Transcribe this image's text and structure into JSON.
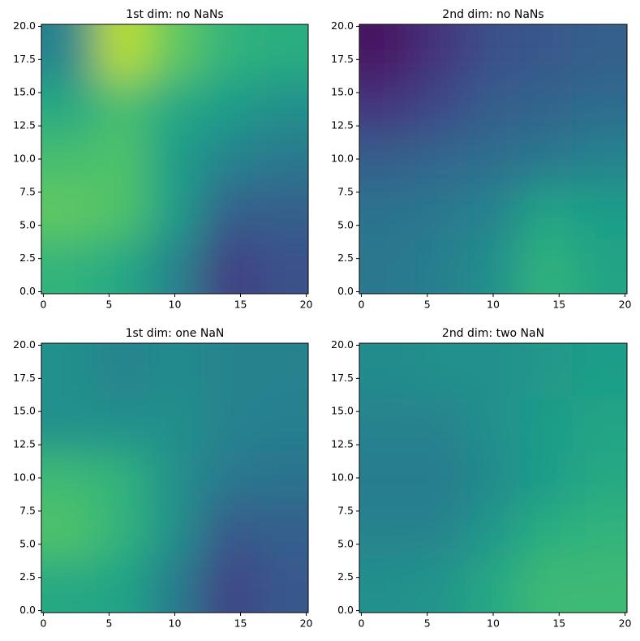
{
  "chart_data": [
    {
      "type": "heatmap",
      "title": "1st dim: no NaNs",
      "colormap": "viridis",
      "clim": [
        0,
        1
      ],
      "x": [
        2,
        6,
        10,
        14,
        18
      ],
      "y": [
        2,
        6,
        10,
        14,
        18
      ],
      "values": [
        [
          0.65,
          0.6,
          0.45,
          0.18,
          0.25
        ],
        [
          0.75,
          0.72,
          0.55,
          0.3,
          0.3
        ],
        [
          0.7,
          0.72,
          0.55,
          0.45,
          0.4
        ],
        [
          0.6,
          0.7,
          0.6,
          0.55,
          0.5
        ],
        [
          0.45,
          0.9,
          0.75,
          0.65,
          0.62
        ]
      ],
      "xlim": [
        -0.15,
        20.15
      ],
      "ylim": [
        -0.15,
        20.15
      ],
      "xticks": [
        0,
        5,
        10,
        15,
        20
      ],
      "yticks": [
        {
          "value": 0,
          "label": "0.0"
        },
        {
          "value": 2.5,
          "label": "2.5"
        },
        {
          "value": 5,
          "label": "5.0"
        },
        {
          "value": 7.5,
          "label": "7.5"
        },
        {
          "value": 10,
          "label": "10.0"
        },
        {
          "value": 12.5,
          "label": "12.5"
        },
        {
          "value": 15,
          "label": "15.0"
        },
        {
          "value": 17.5,
          "label": "17.5"
        },
        {
          "value": 20,
          "label": "20.0"
        }
      ]
    },
    {
      "type": "heatmap",
      "title": "2nd dim: no NaNs",
      "colormap": "viridis",
      "clim": [
        0,
        1
      ],
      "x": [
        2,
        6,
        10,
        14,
        18
      ],
      "y": [
        2,
        6,
        10,
        14,
        18
      ],
      "values": [
        [
          0.4,
          0.43,
          0.5,
          0.65,
          0.58
        ],
        [
          0.38,
          0.4,
          0.45,
          0.58,
          0.55
        ],
        [
          0.3,
          0.33,
          0.36,
          0.4,
          0.45
        ],
        [
          0.15,
          0.22,
          0.3,
          0.32,
          0.35
        ],
        [
          0.05,
          0.15,
          0.25,
          0.28,
          0.3
        ]
      ],
      "xlim": [
        -0.15,
        20.15
      ],
      "ylim": [
        -0.15,
        20.15
      ],
      "xticks": [
        0,
        5,
        10,
        15,
        20
      ],
      "yticks": [
        {
          "value": 0,
          "label": "0.0"
        },
        {
          "value": 2.5,
          "label": "2.5"
        },
        {
          "value": 5,
          "label": "5.0"
        },
        {
          "value": 7.5,
          "label": "7.5"
        },
        {
          "value": 10,
          "label": "10.0"
        },
        {
          "value": 12.5,
          "label": "12.5"
        },
        {
          "value": 15,
          "label": "15.0"
        },
        {
          "value": 17.5,
          "label": "17.5"
        },
        {
          "value": 20,
          "label": "20.0"
        }
      ]
    },
    {
      "type": "heatmap",
      "title": "1st dim: one NaN",
      "colormap": "viridis",
      "clim": [
        0,
        1
      ],
      "x": [
        2,
        6,
        10,
        14,
        18
      ],
      "y": [
        2,
        6,
        10,
        14,
        18
      ],
      "values": [
        [
          0.6,
          0.58,
          0.42,
          0.2,
          0.28
        ],
        [
          0.72,
          0.65,
          0.5,
          0.28,
          0.3
        ],
        [
          0.68,
          0.65,
          0.5,
          0.4,
          0.38
        ],
        [
          0.5,
          0.5,
          0.5,
          0.45,
          0.43
        ],
        [
          0.5,
          0.45,
          0.48,
          0.45,
          0.45
        ]
      ],
      "xlim": [
        -0.15,
        20.15
      ],
      "ylim": [
        -0.15,
        20.15
      ],
      "xticks": [
        0,
        5,
        10,
        15,
        20
      ],
      "yticks": [
        {
          "value": 0,
          "label": "0.0"
        },
        {
          "value": 2.5,
          "label": "2.5"
        },
        {
          "value": 5,
          "label": "5.0"
        },
        {
          "value": 7.5,
          "label": "7.5"
        },
        {
          "value": 10,
          "label": "10.0"
        },
        {
          "value": 12.5,
          "label": "12.5"
        },
        {
          "value": 15,
          "label": "15.0"
        },
        {
          "value": 17.5,
          "label": "17.5"
        },
        {
          "value": 20,
          "label": "20.0"
        }
      ]
    },
    {
      "type": "heatmap",
      "title": "2nd dim: two NaN",
      "colormap": "viridis",
      "clim": [
        0,
        1
      ],
      "x": [
        2,
        6,
        10,
        14,
        18
      ],
      "y": [
        2,
        6,
        10,
        14,
        18
      ],
      "values": [
        [
          0.5,
          0.52,
          0.6,
          0.68,
          0.68
        ],
        [
          0.45,
          0.45,
          0.53,
          0.62,
          0.65
        ],
        [
          0.42,
          0.42,
          0.48,
          0.55,
          0.6
        ],
        [
          0.45,
          0.45,
          0.5,
          0.55,
          0.58
        ],
        [
          0.48,
          0.5,
          0.5,
          0.53,
          0.55
        ]
      ],
      "xlim": [
        -0.15,
        20.15
      ],
      "ylim": [
        -0.15,
        20.15
      ],
      "xticks": [
        0,
        5,
        10,
        15,
        20
      ],
      "yticks": [
        {
          "value": 0,
          "label": "0.0"
        },
        {
          "value": 2.5,
          "label": "2.5"
        },
        {
          "value": 5,
          "label": "5.0"
        },
        {
          "value": 7.5,
          "label": "7.5"
        },
        {
          "value": 10,
          "label": "10.0"
        },
        {
          "value": 12.5,
          "label": "12.5"
        },
        {
          "value": 15,
          "label": "15.0"
        },
        {
          "value": 17.5,
          "label": "17.5"
        },
        {
          "value": 20,
          "label": "20.0"
        }
      ]
    }
  ]
}
